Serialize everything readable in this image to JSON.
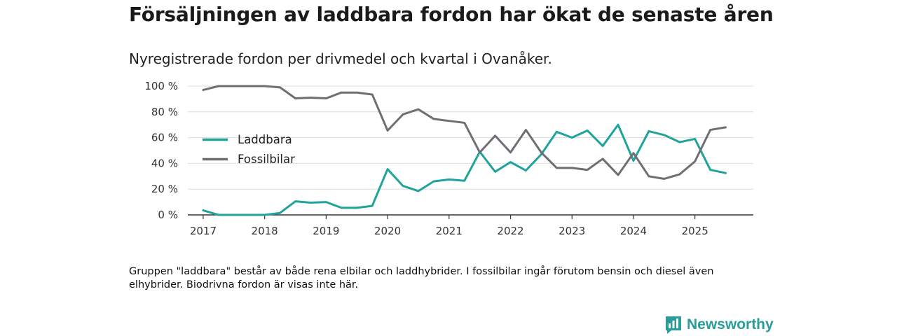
{
  "title": "Försäljningen av laddbara fordon har ökat de senaste åren",
  "subtitle": "Nyregistrerade fordon per drivmedel och kvartal i Ovanåker.",
  "footnote": "Gruppen \"laddbara\" består av både rena elbilar och laddhybrider. I fossilbilar ingår förutom bensin och diesel även elhybrider. Biodrivna fordon är visas inte här.",
  "brand": {
    "name": "Newsworthy",
    "color": "#2a9d9a",
    "icon": "bar-chart-speech-bubble-icon"
  },
  "chart_data": {
    "type": "line",
    "xlim": [
      2016.75,
      2025.95
    ],
    "ylim": [
      0,
      100
    ],
    "yticks": [
      0,
      20,
      40,
      60,
      80,
      100
    ],
    "ytick_labels": [
      "0 %",
      "20 %",
      "40 %",
      "60 %",
      "80 %",
      "100 %"
    ],
    "xticks": [
      2017,
      2018,
      2019,
      2020,
      2021,
      2022,
      2023,
      2024,
      2025
    ],
    "xtick_labels": [
      "2017",
      "2018",
      "2019",
      "2020",
      "2021",
      "2022",
      "2023",
      "2024",
      "2025"
    ],
    "grid": true,
    "legend_position": "left",
    "x": [
      2017.0,
      2017.25,
      2017.5,
      2017.75,
      2018.0,
      2018.25,
      2018.5,
      2018.75,
      2019.0,
      2019.25,
      2019.5,
      2019.75,
      2020.0,
      2020.25,
      2020.5,
      2020.75,
      2021.0,
      2021.25,
      2021.5,
      2021.75,
      2022.0,
      2022.25,
      2022.5,
      2022.75,
      2023.0,
      2023.25,
      2023.5,
      2023.75,
      2024.0,
      2024.25,
      2024.5,
      2024.75,
      2025.0,
      2025.25,
      2025.5
    ],
    "series": [
      {
        "name": "Laddbara",
        "color": "#1fa39a",
        "values": [
          3.5,
          0,
          0,
          0,
          0,
          1.5,
          10.5,
          9.5,
          10,
          5.5,
          5.5,
          7,
          35.5,
          22.5,
          18.5,
          26,
          27.5,
          26.5,
          49,
          33.5,
          41,
          34.5,
          47,
          64.5,
          60,
          65.5,
          53.5,
          70,
          42,
          65,
          62,
          56.5,
          59,
          35,
          32.5
        ]
      },
      {
        "name": "Fossilbilar",
        "color": "#6f6e75",
        "values": [
          97,
          100,
          100,
          100,
          100,
          99,
          90.5,
          91,
          90.5,
          95,
          95,
          93.5,
          65.5,
          78,
          82,
          74.5,
          73,
          71.5,
          48.5,
          61.5,
          48.5,
          66,
          48.5,
          36.5,
          36.5,
          35,
          43.5,
          31,
          48,
          30,
          28,
          31.5,
          41.5,
          66,
          68
        ]
      }
    ]
  }
}
